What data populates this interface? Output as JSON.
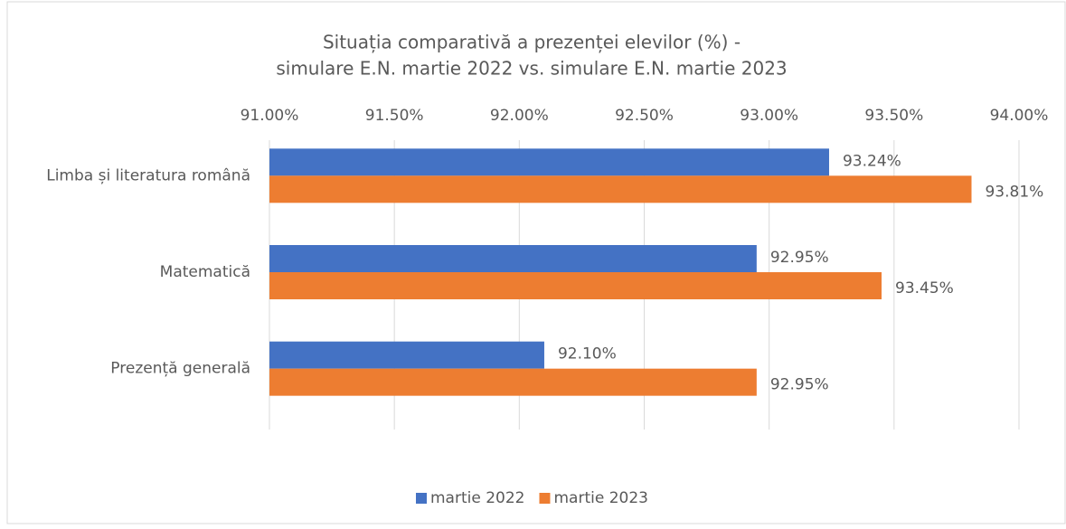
{
  "chart_data": {
    "type": "hbar",
    "title": [
      "Situația comparativă a prezenței elevilor (%) -",
      "simulare E.N. martie 2022 vs. simulare E.N. martie 2023"
    ],
    "categories": [
      "Limba și literatura română",
      "Matematică",
      "Prezență generală"
    ],
    "series": [
      {
        "name": "martie 2022",
        "color": "#4472c4",
        "values": [
          93.24,
          92.95,
          92.1
        ],
        "value_labels": [
          "93.24%",
          "92.95%",
          "92.10%"
        ]
      },
      {
        "name": "martie 2023",
        "color": "#ed7d31",
        "values": [
          93.81,
          93.45,
          92.95
        ],
        "value_labels": [
          "93.81%",
          "93.45%",
          "92.95%"
        ]
      }
    ],
    "xlim": [
      91,
      94
    ],
    "xticks": [
      {
        "value": 91,
        "label": "91.00%"
      },
      {
        "value": 91.5,
        "label": "91.50%"
      },
      {
        "value": 92,
        "label": "92.00%"
      },
      {
        "value": 92.5,
        "label": "92.50%"
      },
      {
        "value": 93,
        "label": "93.00%"
      },
      {
        "value": 93.5,
        "label": "93.50%"
      },
      {
        "value": 94,
        "label": "94.00%"
      }
    ],
    "grid": true,
    "legend": "bottom"
  }
}
